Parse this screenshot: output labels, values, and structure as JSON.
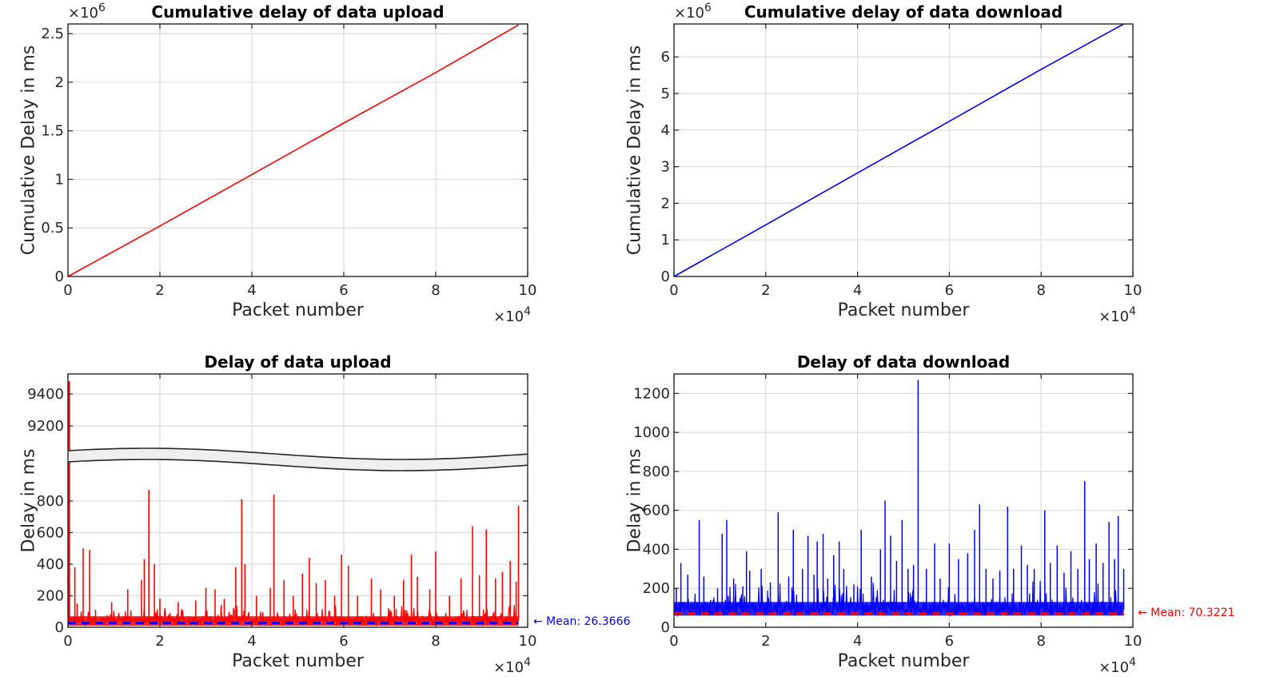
{
  "chart_data": [
    {
      "type": "line",
      "title": "Cumulative delay of data upload",
      "xlabel": "Packet number",
      "ylabel": "Cumulative Delay in ms",
      "x_multiplier": "×10",
      "x_exponent": "4",
      "y_multiplier": "×10",
      "y_exponent": "6",
      "xlim": [
        0,
        10
      ],
      "ylim": [
        0,
        2.6
      ],
      "xticks": [
        "0",
        "2",
        "4",
        "6",
        "8",
        "10"
      ],
      "yticks": [
        "0",
        "0.5",
        "1",
        "1.5",
        "2",
        "2.5"
      ],
      "grid": true,
      "series": [
        {
          "color": "#ff0000",
          "x": [
            0,
            2,
            4,
            6,
            8,
            9.8
          ],
          "y": [
            0,
            0.52,
            1.05,
            1.58,
            2.1,
            2.59
          ]
        }
      ]
    },
    {
      "type": "line",
      "title": "Cumulative delay of data download",
      "xlabel": "Packet number",
      "ylabel": "Cumulative Delay in ms",
      "x_multiplier": "×10",
      "x_exponent": "4",
      "y_multiplier": "×10",
      "y_exponent": "6",
      "xlim": [
        0,
        10
      ],
      "ylim": [
        0,
        6.9
      ],
      "xticks": [
        "0",
        "2",
        "4",
        "6",
        "8",
        "10"
      ],
      "yticks": [
        "0",
        "1",
        "2",
        "3",
        "4",
        "5",
        "6"
      ],
      "grid": true,
      "series": [
        {
          "color": "#0000ff",
          "x": [
            0,
            2,
            4,
            6,
            8,
            9.8
          ],
          "y": [
            0,
            1.41,
            2.83,
            4.24,
            5.66,
            6.9
          ]
        }
      ]
    },
    {
      "type": "line",
      "title": "Delay of data upload",
      "xlabel": "Packet number",
      "ylabel": "Delay in ms",
      "x_multiplier": "×10",
      "x_exponent": "4",
      "xlim": [
        0,
        10
      ],
      "ylim_lower": [
        0,
        1000
      ],
      "ylim_upper": [
        9050,
        9500
      ],
      "broken_axis": true,
      "xticks": [
        "0",
        "2",
        "4",
        "6",
        "8",
        "10"
      ],
      "yticks_lower": [
        "0",
        "200",
        "400",
        "600",
        "800"
      ],
      "yticks_upper": [
        "9200",
        "9400"
      ],
      "grid": true,
      "series": [
        {
          "color": "#ff0000",
          "baseline": 35,
          "max_point": {
            "x": 0.01,
            "y": 9480
          }
        }
      ],
      "spikes": [
        [
          0.03,
          300
        ],
        [
          0.15,
          380
        ],
        [
          0.2,
          150
        ],
        [
          0.33,
          500
        ],
        [
          0.47,
          490
        ],
        [
          0.6,
          110
        ],
        [
          0.95,
          160
        ],
        [
          1.3,
          240
        ],
        [
          1.6,
          300
        ],
        [
          1.66,
          430
        ],
        [
          1.76,
          870
        ],
        [
          1.88,
          400
        ],
        [
          2.0,
          180
        ],
        [
          2.4,
          160
        ],
        [
          2.78,
          170
        ],
        [
          3.0,
          250
        ],
        [
          3.2,
          240
        ],
        [
          3.4,
          180
        ],
        [
          3.65,
          380
        ],
        [
          3.78,
          810
        ],
        [
          3.85,
          400
        ],
        [
          4.1,
          200
        ],
        [
          4.4,
          250
        ],
        [
          4.48,
          840
        ],
        [
          4.7,
          300
        ],
        [
          4.9,
          200
        ],
        [
          5.1,
          340
        ],
        [
          5.25,
          440
        ],
        [
          5.4,
          280
        ],
        [
          5.6,
          300
        ],
        [
          5.8,
          200
        ],
        [
          5.95,
          460
        ],
        [
          6.1,
          390
        ],
        [
          6.3,
          200
        ],
        [
          6.6,
          310
        ],
        [
          6.8,
          240
        ],
        [
          7.1,
          200
        ],
        [
          7.3,
          300
        ],
        [
          7.47,
          460
        ],
        [
          7.6,
          320
        ],
        [
          7.87,
          240
        ],
        [
          8.0,
          480
        ],
        [
          8.3,
          200
        ],
        [
          8.55,
          310
        ],
        [
          8.8,
          640
        ],
        [
          8.95,
          330
        ],
        [
          9.1,
          620
        ],
        [
          9.3,
          310
        ],
        [
          9.45,
          350
        ],
        [
          9.62,
          420
        ],
        [
          9.75,
          290
        ],
        [
          9.8,
          770
        ]
      ],
      "mean": {
        "value": 26.3666,
        "color": "#0000ff",
        "label": "← Mean: 26.3666"
      }
    },
    {
      "type": "line",
      "title": "Delay of data download",
      "xlabel": "Packet number",
      "ylabel": "Delay in ms",
      "x_multiplier": "×10",
      "x_exponent": "4",
      "xlim": [
        0,
        10
      ],
      "ylim": [
        0,
        1300
      ],
      "xticks": [
        "0",
        "2",
        "4",
        "6",
        "8",
        "10"
      ],
      "yticks": [
        "0",
        "200",
        "400",
        "600",
        "800",
        "1000",
        "1200"
      ],
      "grid": true,
      "series": [
        {
          "color": "#0000ff",
          "baseline": 90
        }
      ],
      "spikes": [
        [
          0.05,
          200
        ],
        [
          0.15,
          330
        ],
        [
          0.3,
          270
        ],
        [
          0.55,
          550
        ],
        [
          0.65,
          260
        ],
        [
          0.8,
          140
        ],
        [
          0.95,
          200
        ],
        [
          1.05,
          480
        ],
        [
          1.15,
          550
        ],
        [
          1.3,
          250
        ],
        [
          1.5,
          210
        ],
        [
          1.58,
          390
        ],
        [
          1.65,
          290
        ],
        [
          1.9,
          300
        ],
        [
          2.1,
          230
        ],
        [
          2.27,
          590
        ],
        [
          2.5,
          260
        ],
        [
          2.6,
          500
        ],
        [
          2.8,
          300
        ],
        [
          2.92,
          470
        ],
        [
          3.05,
          270
        ],
        [
          3.12,
          440
        ],
        [
          3.25,
          480
        ],
        [
          3.35,
          250
        ],
        [
          3.48,
          370
        ],
        [
          3.6,
          440
        ],
        [
          3.7,
          300
        ],
        [
          3.92,
          220
        ],
        [
          4.08,
          500
        ],
        [
          4.3,
          260
        ],
        [
          4.5,
          400
        ],
        [
          4.6,
          650
        ],
        [
          4.72,
          470
        ],
        [
          4.85,
          340
        ],
        [
          4.97,
          550
        ],
        [
          5.1,
          300
        ],
        [
          5.22,
          320
        ],
        [
          5.32,
          1270
        ],
        [
          5.5,
          300
        ],
        [
          5.68,
          430
        ],
        [
          5.8,
          250
        ],
        [
          6.0,
          430
        ],
        [
          6.2,
          350
        ],
        [
          6.4,
          380
        ],
        [
          6.55,
          500
        ],
        [
          6.66,
          630
        ],
        [
          6.8,
          300
        ],
        [
          6.95,
          250
        ],
        [
          7.1,
          290
        ],
        [
          7.27,
          620
        ],
        [
          7.4,
          300
        ],
        [
          7.57,
          420
        ],
        [
          7.7,
          320
        ],
        [
          7.85,
          300
        ],
        [
          8.08,
          600
        ],
        [
          8.2,
          330
        ],
        [
          8.35,
          420
        ],
        [
          8.5,
          280
        ],
        [
          8.65,
          390
        ],
        [
          8.8,
          300
        ],
        [
          8.95,
          750
        ],
        [
          9.05,
          350
        ],
        [
          9.2,
          430
        ],
        [
          9.35,
          330
        ],
        [
          9.48,
          540
        ],
        [
          9.6,
          350
        ],
        [
          9.68,
          570
        ],
        [
          9.8,
          300
        ]
      ],
      "mean": {
        "value": 70.3221,
        "color": "#ff0000",
        "label": "← Mean: 70.3221"
      }
    }
  ]
}
